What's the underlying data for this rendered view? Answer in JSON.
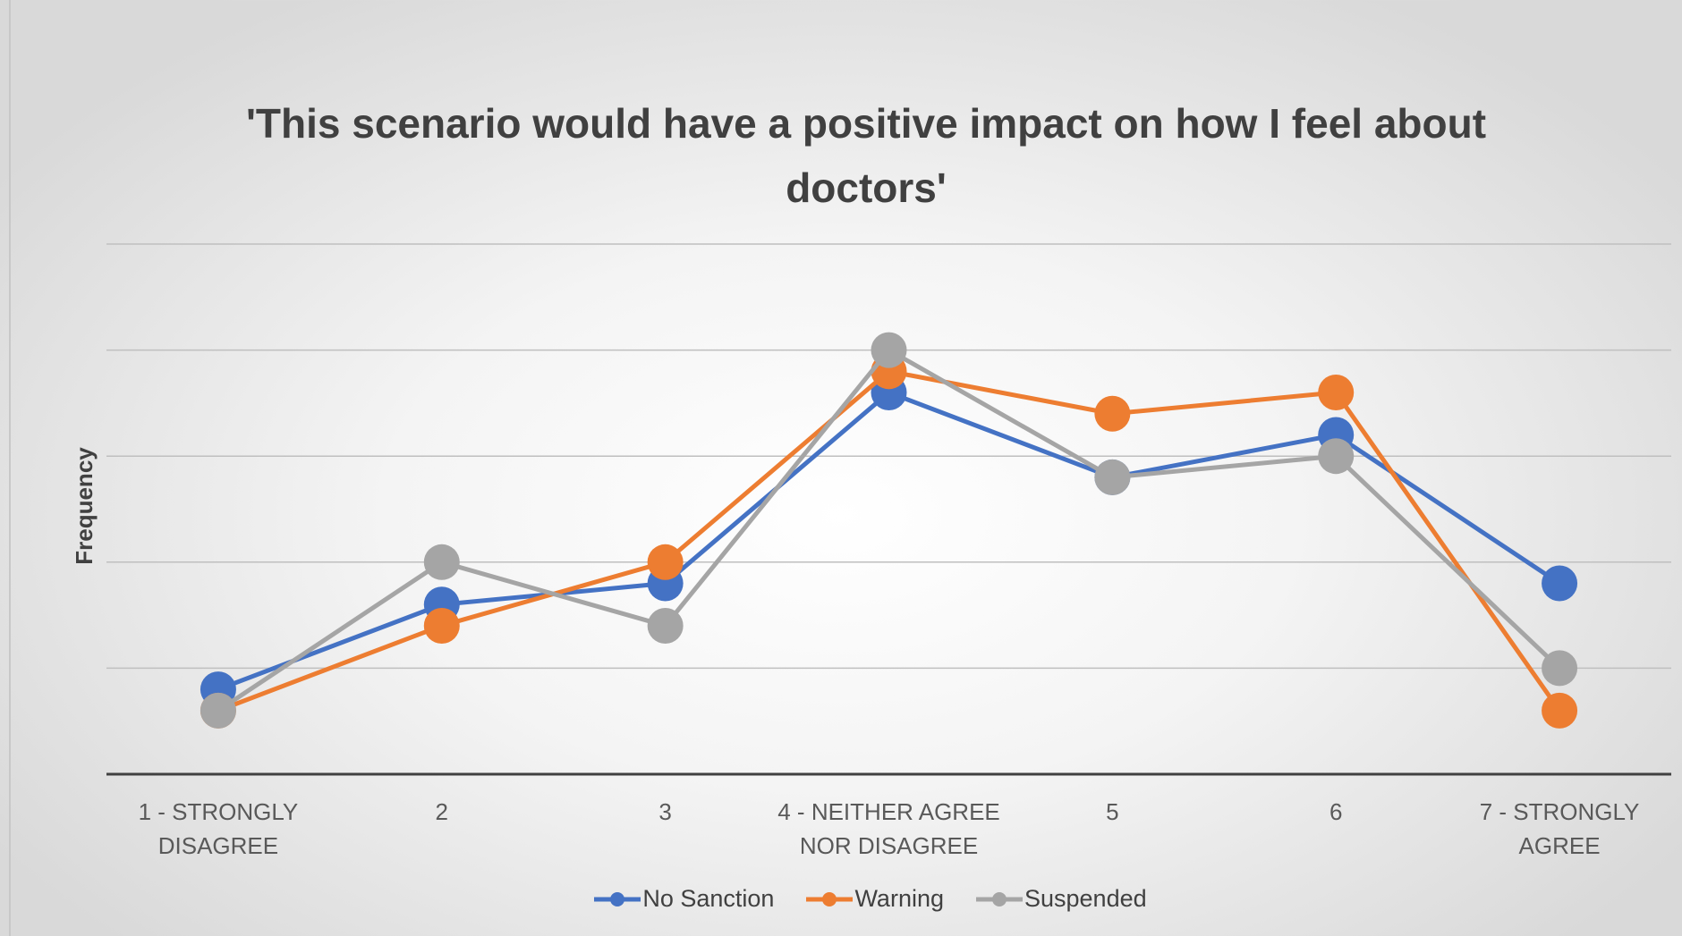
{
  "chart_data": {
    "type": "line",
    "title": "'This scenario would have a positive impact on how I feel about doctors'",
    "y_label": "Frequency",
    "categories": [
      "1 - STRONGLY DISAGREE",
      "2",
      "3",
      "4 - NEITHER AGREE NOR DISAGREE",
      "5",
      "6",
      "7 - STRONGLY AGREE"
    ],
    "series": [
      {
        "name": "No Sanction",
        "color": "#4472c4",
        "values": [
          0.8,
          1.6,
          1.8,
          3.6,
          2.8,
          3.2,
          1.8
        ]
      },
      {
        "name": "Warning",
        "color": "#ed7d31",
        "values": [
          0.6,
          1.4,
          2.0,
          3.8,
          3.4,
          3.6,
          0.6
        ]
      },
      {
        "name": "Suspended",
        "color": "#a5a5a5",
        "values": [
          0.6,
          2.0,
          1.4,
          4.0,
          2.8,
          3.0,
          1.0
        ]
      }
    ],
    "ylim": [
      0,
      5
    ],
    "yticks": [
      0,
      1,
      2,
      3,
      4,
      5
    ],
    "grid": true,
    "legend": "bottom"
  }
}
